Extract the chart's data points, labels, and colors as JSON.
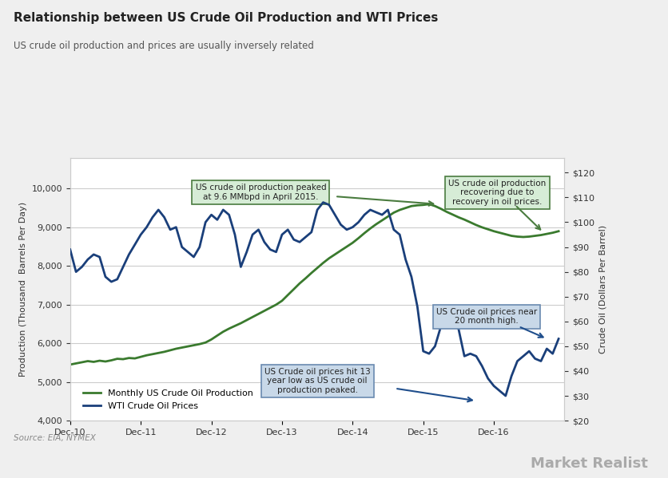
{
  "title": "Relationship between US Crude Oil Production and WTI Prices",
  "subtitle": "US crude oil production and prices are usually inversely related",
  "source": "Source: EIA, NYMEX",
  "ylabel_left": "Production (Thousand  Barrels Per Day)",
  "ylabel_right": "Crude Oil (Dollars Per Barrel)",
  "ylim_left": [
    4000,
    10800
  ],
  "ylim_right": [
    20,
    126
  ],
  "yticks_left": [
    4000,
    5000,
    6000,
    7000,
    8000,
    9000,
    10000
  ],
  "yticks_right": [
    20,
    30,
    40,
    50,
    60,
    70,
    80,
    90,
    100,
    110,
    120
  ],
  "bg_color": "#efefef",
  "plot_bg_color": "#ffffff",
  "line_prod_color": "#3a7a2e",
  "line_wti_color": "#1a3f7a",
  "legend_labels": [
    "Monthly US Crude Oil Production",
    "WTI Crude Oil Prices"
  ],
  "prod_data": {
    "dates": [
      2010.0,
      2010.083,
      2010.167,
      2010.25,
      2010.333,
      2010.417,
      2010.5,
      2010.583,
      2010.667,
      2010.75,
      2010.833,
      2010.917,
      2011.0,
      2011.083,
      2011.167,
      2011.25,
      2011.333,
      2011.417,
      2011.5,
      2011.583,
      2011.667,
      2011.75,
      2011.833,
      2011.917,
      2012.0,
      2012.083,
      2012.167,
      2012.25,
      2012.333,
      2012.417,
      2012.5,
      2012.583,
      2012.667,
      2012.75,
      2012.833,
      2012.917,
      2013.0,
      2013.083,
      2013.167,
      2013.25,
      2013.333,
      2013.417,
      2013.5,
      2013.583,
      2013.667,
      2013.75,
      2013.833,
      2013.917,
      2014.0,
      2014.083,
      2014.167,
      2014.25,
      2014.333,
      2014.417,
      2014.5,
      2014.583,
      2014.667,
      2014.75,
      2014.833,
      2014.917,
      2015.0,
      2015.083,
      2015.167,
      2015.25,
      2015.333,
      2015.417,
      2015.5,
      2015.583,
      2015.667,
      2015.75,
      2015.833,
      2015.917,
      2016.0,
      2016.083,
      2016.167,
      2016.25,
      2016.333,
      2016.417,
      2016.5,
      2016.583,
      2016.667,
      2016.75,
      2016.833,
      2016.917
    ],
    "values": [
      5450,
      5480,
      5510,
      5540,
      5520,
      5550,
      5530,
      5560,
      5600,
      5590,
      5620,
      5610,
      5650,
      5690,
      5720,
      5750,
      5780,
      5820,
      5860,
      5890,
      5920,
      5950,
      5980,
      6020,
      6100,
      6200,
      6300,
      6380,
      6450,
      6520,
      6600,
      6680,
      6760,
      6840,
      6920,
      7000,
      7100,
      7250,
      7400,
      7550,
      7680,
      7820,
      7950,
      8080,
      8200,
      8300,
      8400,
      8500,
      8600,
      8720,
      8850,
      8970,
      9080,
      9180,
      9280,
      9380,
      9450,
      9500,
      9550,
      9570,
      9580,
      9600,
      9550,
      9480,
      9400,
      9330,
      9260,
      9200,
      9130,
      9060,
      9000,
      8950,
      8900,
      8860,
      8820,
      8780,
      8760,
      8750,
      8760,
      8780,
      8800,
      8830,
      8860,
      8900
    ]
  },
  "wti_data": {
    "dates": [
      2010.0,
      2010.083,
      2010.167,
      2010.25,
      2010.333,
      2010.417,
      2010.5,
      2010.583,
      2010.667,
      2010.75,
      2010.833,
      2010.917,
      2011.0,
      2011.083,
      2011.167,
      2011.25,
      2011.333,
      2011.417,
      2011.5,
      2011.583,
      2011.667,
      2011.75,
      2011.833,
      2011.917,
      2012.0,
      2012.083,
      2012.167,
      2012.25,
      2012.333,
      2012.417,
      2012.5,
      2012.583,
      2012.667,
      2012.75,
      2012.833,
      2012.917,
      2013.0,
      2013.083,
      2013.167,
      2013.25,
      2013.333,
      2013.417,
      2013.5,
      2013.583,
      2013.667,
      2013.75,
      2013.833,
      2013.917,
      2014.0,
      2014.083,
      2014.167,
      2014.25,
      2014.333,
      2014.417,
      2014.5,
      2014.583,
      2014.667,
      2014.75,
      2014.833,
      2014.917,
      2015.0,
      2015.083,
      2015.167,
      2015.25,
      2015.333,
      2015.417,
      2015.5,
      2015.583,
      2015.667,
      2015.75,
      2015.833,
      2015.917,
      2016.0,
      2016.083,
      2016.167,
      2016.25,
      2016.333,
      2016.417,
      2016.5,
      2016.583,
      2016.667,
      2016.75,
      2016.833,
      2016.917
    ],
    "values": [
      89,
      80,
      82,
      85,
      87,
      86,
      78,
      76,
      77,
      82,
      87,
      91,
      95,
      98,
      102,
      105,
      102,
      97,
      98,
      90,
      88,
      86,
      90,
      100,
      103,
      101,
      105,
      103,
      95,
      82,
      88,
      95,
      97,
      92,
      89,
      88,
      95,
      97,
      93,
      92,
      94,
      96,
      105,
      108,
      107,
      103,
      99,
      97,
      98,
      100,
      103,
      105,
      104,
      103,
      105,
      97,
      95,
      85,
      78,
      66,
      48,
      47,
      50,
      58,
      60,
      59,
      57,
      46,
      47,
      46,
      42,
      37,
      34,
      32,
      30,
      38,
      44,
      46,
      48,
      45,
      44,
      49,
      47,
      53
    ]
  }
}
